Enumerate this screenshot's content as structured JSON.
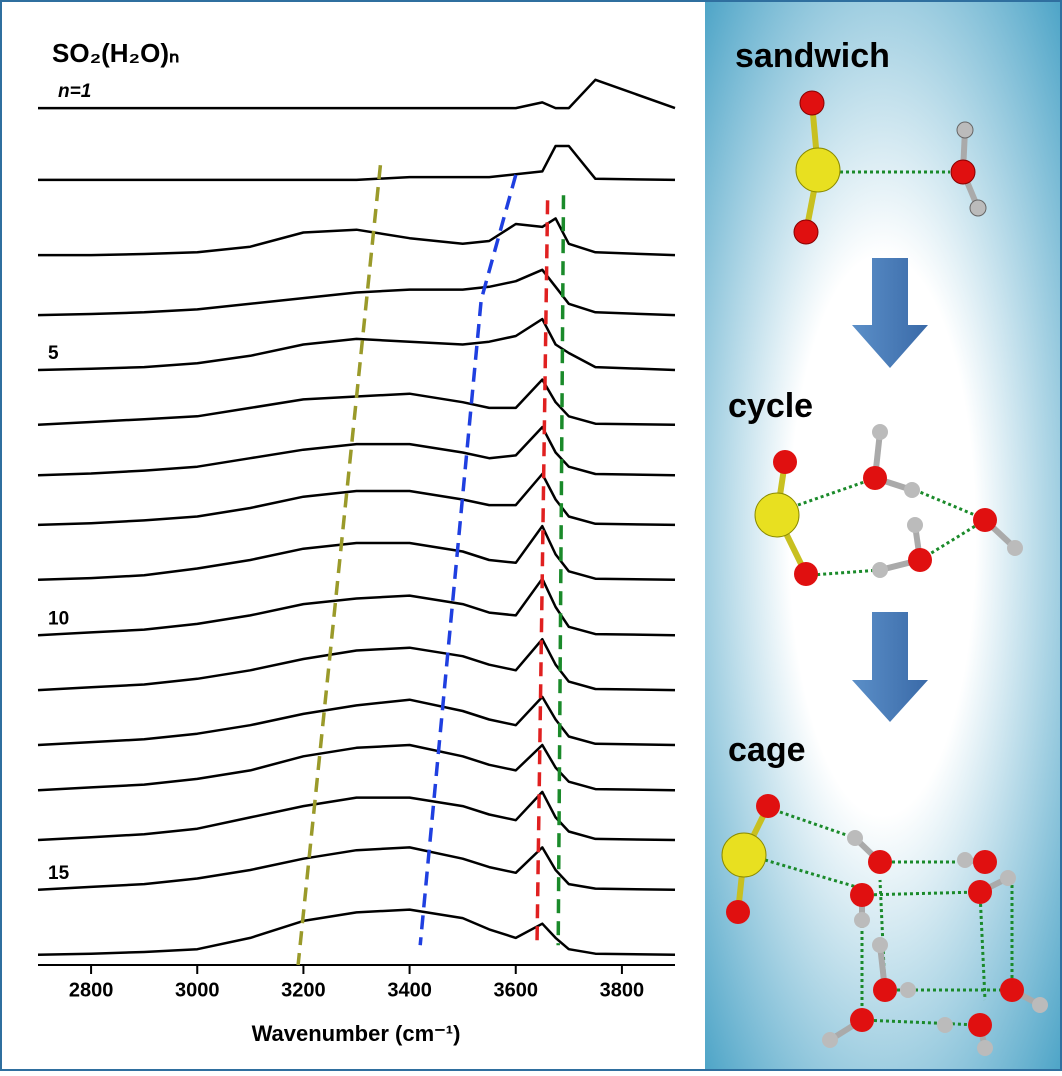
{
  "chart_data": {
    "type": "line",
    "title": "SO₂(H₂O)ₙ",
    "x_label": "Wavenumber (cm⁻¹)",
    "x": [
      2700,
      2800,
      2900,
      3000,
      3100,
      3200,
      3300,
      3400,
      3500,
      3550,
      3600,
      3650,
      3675,
      3700,
      3750,
      3900
    ],
    "xlim": [
      2700,
      3900
    ],
    "xticks": [
      2800,
      3000,
      3200,
      3400,
      3600,
      3800
    ],
    "ylim": [
      0.8,
      16.8
    ],
    "series": [
      {
        "name": "n=1",
        "color": "#000000",
        "values": [
          15.95,
          15.95,
          15.95,
          15.95,
          15.95,
          15.95,
          15.95,
          15.95,
          15.95,
          15.95,
          15.95,
          16.05,
          15.95,
          15.95,
          16.45,
          15.95
        ]
      },
      {
        "color": "#000000",
        "values": [
          14.68,
          14.68,
          14.68,
          14.68,
          14.68,
          14.68,
          14.68,
          14.73,
          14.73,
          14.73,
          14.78,
          14.83,
          15.28,
          15.28,
          14.7,
          14.68
        ]
      },
      {
        "color": "#000000",
        "values": [
          13.35,
          13.35,
          13.37,
          13.4,
          13.5,
          13.75,
          13.8,
          13.65,
          13.55,
          13.6,
          13.9,
          13.85,
          14.0,
          13.55,
          13.4,
          13.35
        ]
      },
      {
        "color": "#000000",
        "values": [
          12.29,
          12.31,
          12.34,
          12.39,
          12.49,
          12.59,
          12.69,
          12.74,
          12.74,
          12.79,
          12.89,
          13.09,
          12.79,
          12.49,
          12.34,
          12.29
        ]
      },
      {
        "name": "5",
        "color": "#000000",
        "values": [
          11.32,
          11.34,
          11.37,
          11.44,
          11.57,
          11.77,
          11.87,
          11.82,
          11.77,
          11.82,
          11.92,
          12.22,
          11.77,
          11.62,
          11.37,
          11.32
        ]
      },
      {
        "color": "#000000",
        "values": [
          10.35,
          10.4,
          10.45,
          10.5,
          10.65,
          10.8,
          10.85,
          10.9,
          10.75,
          10.65,
          10.65,
          11.15,
          10.75,
          10.5,
          10.37,
          10.35
        ]
      },
      {
        "color": "#000000",
        "values": [
          9.46,
          9.49,
          9.54,
          9.61,
          9.76,
          9.91,
          10.01,
          10.01,
          9.86,
          9.76,
          9.81,
          10.31,
          9.86,
          9.61,
          9.48,
          9.46
        ]
      },
      {
        "color": "#000000",
        "values": [
          8.58,
          8.61,
          8.66,
          8.73,
          8.88,
          9.08,
          9.18,
          9.18,
          9.03,
          8.93,
          8.93,
          9.48,
          9.03,
          8.73,
          8.6,
          8.58
        ]
      },
      {
        "color": "#000000",
        "values": [
          7.61,
          7.64,
          7.69,
          7.81,
          7.96,
          8.16,
          8.26,
          8.26,
          8.11,
          7.96,
          7.91,
          8.56,
          8.06,
          7.76,
          7.63,
          7.61
        ]
      },
      {
        "name": "10",
        "color": "#000000",
        "values": [
          6.63,
          6.68,
          6.73,
          6.83,
          6.98,
          7.18,
          7.28,
          7.33,
          7.18,
          7.03,
          6.98,
          7.63,
          7.13,
          6.78,
          6.65,
          6.63
        ]
      },
      {
        "color": "#000000",
        "values": [
          5.66,
          5.71,
          5.76,
          5.86,
          6.01,
          6.21,
          6.36,
          6.41,
          6.26,
          6.11,
          6.01,
          6.56,
          6.11,
          5.81,
          5.68,
          5.66
        ]
      },
      {
        "color": "#000000",
        "values": [
          4.69,
          4.74,
          4.79,
          4.89,
          5.04,
          5.24,
          5.39,
          5.49,
          5.29,
          5.14,
          5.04,
          5.54,
          5.14,
          4.84,
          4.71,
          4.69
        ]
      },
      {
        "color": "#000000",
        "values": [
          3.89,
          3.94,
          3.99,
          4.09,
          4.24,
          4.49,
          4.64,
          4.69,
          4.49,
          4.34,
          4.24,
          4.69,
          4.29,
          4.04,
          3.91,
          3.89
        ]
      },
      {
        "color": "#000000",
        "values": [
          3.01,
          3.06,
          3.11,
          3.21,
          3.41,
          3.61,
          3.76,
          3.76,
          3.61,
          3.46,
          3.36,
          3.86,
          3.41,
          3.16,
          3.03,
          3.01
        ]
      },
      {
        "name": "15",
        "color": "#000000",
        "values": [
          2.13,
          2.18,
          2.23,
          2.33,
          2.48,
          2.68,
          2.83,
          2.88,
          2.68,
          2.53,
          2.43,
          2.88,
          2.48,
          2.23,
          2.15,
          2.13
        ]
      },
      {
        "color": "#000000",
        "values": [
          0.98,
          1.0,
          1.03,
          1.08,
          1.28,
          1.58,
          1.73,
          1.78,
          1.63,
          1.43,
          1.28,
          1.53,
          1.28,
          1.08,
          1.0,
          0.98
        ]
      }
    ],
    "guides": [
      {
        "color": "#9a9a2a",
        "x": [
          3345,
          3190
        ],
        "y": [
          14.94,
          0.8
        ]
      },
      {
        "color": "#1f3fe0",
        "x": [
          3600,
          3535,
          3420
        ],
        "y": [
          14.77,
          12.56,
          1.15
        ]
      },
      {
        "color": "#e02020",
        "x": [
          3660,
          3640
        ],
        "y": [
          14.32,
          1.15
        ]
      },
      {
        "color": "#1a8a2a",
        "x": [
          3690,
          3680
        ],
        "y": [
          14.41,
          1.15
        ]
      }
    ]
  },
  "panel": {
    "stages": [
      "sandwich",
      "cycle",
      "cage"
    ]
  }
}
